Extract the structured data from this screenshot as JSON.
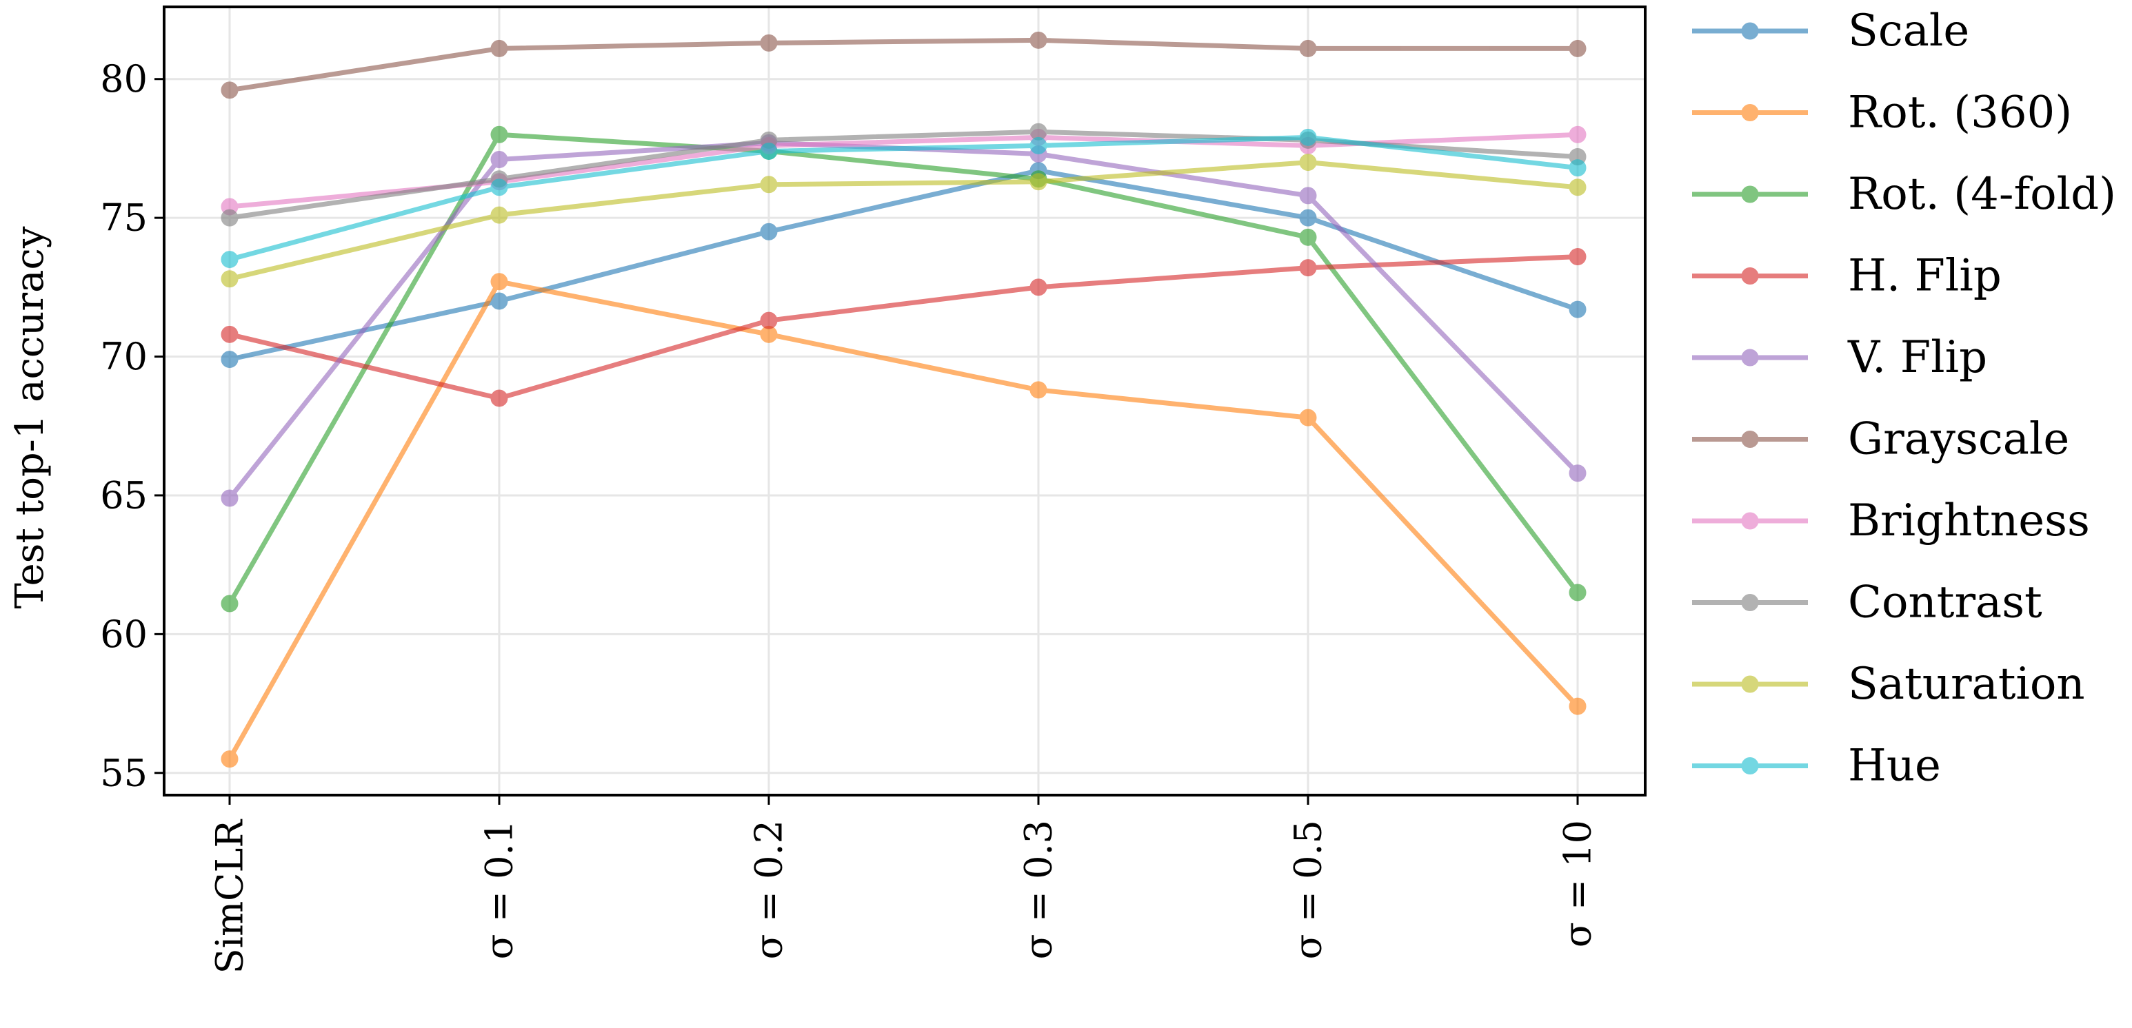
{
  "chart_data": {
    "type": "line",
    "title": "",
    "xlabel": "",
    "ylabel": "Test top-1 accuracy",
    "categories": [
      "SimCLR",
      "σ = 0.1",
      "σ = 0.2",
      "σ = 0.3",
      "σ = 0.5",
      "σ = 10"
    ],
    "ylim": [
      54.2,
      82.6
    ],
    "yticks": [
      55,
      60,
      65,
      70,
      75,
      80
    ],
    "grid": true,
    "legend_position": "outside-right",
    "series": [
      {
        "name": "Scale",
        "color": "#1f77b4",
        "values": [
          69.9,
          72.0,
          74.5,
          76.7,
          75.0,
          71.7
        ]
      },
      {
        "name": "Rot. (360)",
        "color": "#ff7f0e",
        "values": [
          55.5,
          72.7,
          70.8,
          68.8,
          67.8,
          57.4
        ]
      },
      {
        "name": "Rot. (4-fold)",
        "color": "#2ca02c",
        "values": [
          61.1,
          78.0,
          77.4,
          76.4,
          74.3,
          61.5
        ]
      },
      {
        "name": "H. Flip",
        "color": "#d62728",
        "values": [
          70.8,
          68.5,
          71.3,
          72.5,
          73.2,
          73.6
        ]
      },
      {
        "name": "V. Flip",
        "color": "#9467bd",
        "values": [
          64.9,
          77.1,
          77.7,
          77.3,
          75.8,
          65.8
        ]
      },
      {
        "name": "Grayscale",
        "color": "#8c564b",
        "values": [
          79.6,
          81.1,
          81.3,
          81.4,
          81.1,
          81.1
        ]
      },
      {
        "name": "Brightness",
        "color": "#e377c2",
        "values": [
          75.4,
          76.3,
          77.6,
          77.9,
          77.6,
          78.0
        ]
      },
      {
        "name": "Contrast",
        "color": "#7f7f7f",
        "values": [
          75.0,
          76.4,
          77.8,
          78.1,
          77.8,
          77.2
        ]
      },
      {
        "name": "Saturation",
        "color": "#bcbd22",
        "values": [
          72.8,
          75.1,
          76.2,
          76.3,
          77.0,
          76.1
        ]
      },
      {
        "name": "Hue",
        "color": "#17becf",
        "values": [
          73.5,
          76.1,
          77.4,
          77.6,
          77.9,
          76.8
        ]
      }
    ]
  }
}
